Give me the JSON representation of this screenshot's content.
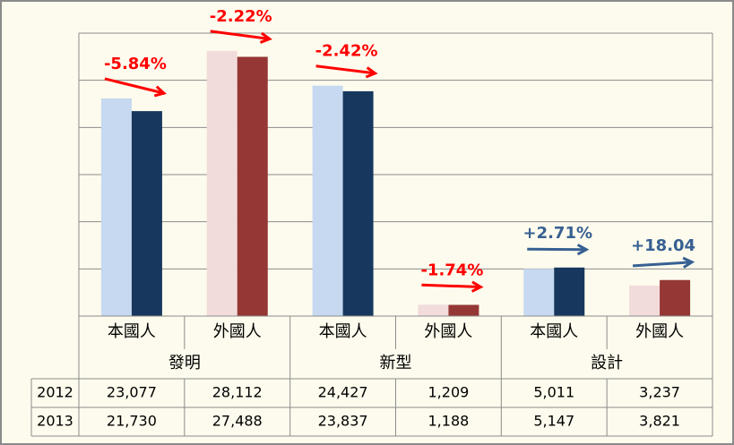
{
  "chart_data": {
    "type": "bar",
    "groups": [
      {
        "label": "發明",
        "categories": [
          "本國人",
          "外國人"
        ]
      },
      {
        "label": "新型",
        "categories": [
          "本國人",
          "外國人"
        ]
      },
      {
        "label": "設計",
        "categories": [
          "本國人",
          "外國人"
        ]
      }
    ],
    "series": [
      {
        "name": "2012",
        "colors": [
          "#c6d9f1",
          "#f2dcdb",
          "#c6d9f1",
          "#f2dcdb",
          "#c6d9f1",
          "#f2dcdb"
        ],
        "values": [
          23077,
          28112,
          24427,
          1209,
          5011,
          3237
        ],
        "value_labels": [
          "23,077",
          "28,112",
          "24,427",
          "1,209",
          "5,011",
          "3,237"
        ]
      },
      {
        "name": "2013",
        "colors": [
          "#17375e",
          "#953735",
          "#17375e",
          "#953735",
          "#17375e",
          "#953735"
        ],
        "values": [
          21730,
          27488,
          23837,
          1188,
          5147,
          3821
        ],
        "value_labels": [
          "21,730",
          "27,488",
          "23,837",
          "1,188",
          "5,147",
          "3,821"
        ]
      }
    ],
    "annotations": [
      {
        "text": "-5.84%",
        "color": "#ff0000"
      },
      {
        "text": "-2.22%",
        "color": "#ff0000"
      },
      {
        "text": "-2.42%",
        "color": "#ff0000"
      },
      {
        "text": "-1.74%",
        "color": "#ff0000"
      },
      {
        "text": "+2.71%",
        "color": "#376092"
      },
      {
        "text": "+18.04",
        "color": "#376092"
      }
    ],
    "ylim": [
      0,
      30000
    ],
    "yticks": [
      0,
      5000,
      10000,
      15000,
      20000,
      25000,
      30000
    ],
    "grid": true
  }
}
